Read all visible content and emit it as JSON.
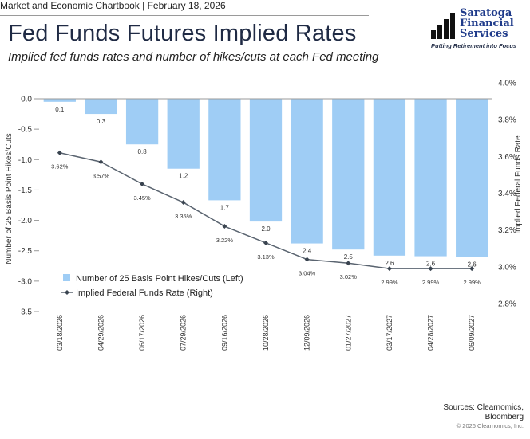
{
  "header": {
    "chartbook": "Market and Economic Chartbook",
    "separator": "|",
    "date": "February 18, 2026",
    "title": "Fed Funds Futures Implied Rates",
    "subtitle": "Implied fed funds rates and number of hikes/cuts at each Fed meeting"
  },
  "logo": {
    "line1": "Saratoga",
    "line2": "Financial",
    "line3": "Services",
    "tagline": "Putting Retirement into Focus",
    "color": "#1e3a8a"
  },
  "footer": {
    "sources_line1": "Sources: Clearnomics,",
    "sources_line2": "Bloomberg",
    "copyright": "© 2026 Clearnomics, Inc."
  },
  "chart_data": {
    "type": "bar",
    "categories": [
      "03/18/2026",
      "04/29/2026",
      "06/17/2026",
      "07/29/2026",
      "09/16/2026",
      "10/28/2026",
      "12/09/2026",
      "01/27/2027",
      "03/17/2027",
      "04/28/2027",
      "06/09/2027"
    ],
    "series": [
      {
        "name": "Number of 25 Basis Point Hikes/Cuts (Left)",
        "type": "bar",
        "axis": "left",
        "values": [
          -0.05,
          -0.25,
          -0.75,
          -1.15,
          -1.67,
          -2.02,
          -2.38,
          -2.48,
          -2.58,
          -2.59,
          -2.6
        ],
        "labels": [
          "0.1",
          "0.3",
          "0.8",
          "1.2",
          "1.7",
          "2.0",
          "2.4",
          "2.5",
          "2.6",
          "2.6",
          "2.6"
        ],
        "color": "#9fcdf5"
      },
      {
        "name": "Implied Federal Funds Rate (Right)",
        "type": "line",
        "axis": "right",
        "values": [
          3.62,
          3.57,
          3.45,
          3.35,
          3.22,
          3.13,
          3.04,
          3.02,
          2.99,
          2.99,
          2.99
        ],
        "labels": [
          "3.62%",
          "3.57%",
          "3.45%",
          "3.35%",
          "3.22%",
          "3.13%",
          "3.04%",
          "3.02%",
          "2.99%",
          "2.99%",
          "2.99%"
        ],
        "color": "#5a6470"
      }
    ],
    "left_axis": {
      "label": "Number of 25 Basis Point Hikes/Cuts",
      "range": [
        -3.5,
        0.0
      ],
      "ticks": [
        0.0,
        -0.5,
        -1.0,
        -1.5,
        -2.0,
        -2.5,
        -3.0,
        -3.5
      ],
      "tick_labels": [
        "0.0",
        "-0.5",
        "-1.0",
        "-1.5",
        "-2.0",
        "-2.5",
        "-3.0",
        "-3.5"
      ]
    },
    "right_axis": {
      "label": "Implied Federal Funds Rate",
      "range": [
        2.8,
        4.0
      ],
      "ticks": [
        4.0,
        3.8,
        3.6,
        3.4,
        3.2,
        3.0,
        2.8
      ],
      "tick_labels": [
        "4.0%",
        "3.8%",
        "3.6%",
        "3.4%",
        "3.2%",
        "3.0%",
        "2.8%"
      ]
    },
    "legend_position": "bottom-left",
    "grid": false
  }
}
